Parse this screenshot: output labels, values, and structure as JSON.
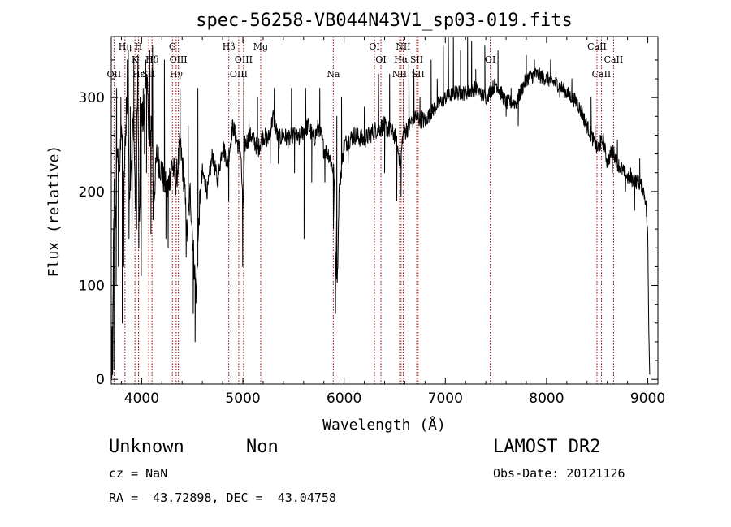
{
  "chart_data": {
    "type": "line",
    "title": "spec-56258-VB044N43V1_sp03-019.fits",
    "xlabel": "Wavelength (Å)",
    "ylabel": "Flux (relative)",
    "xlim": [
      3700,
      9100
    ],
    "ylim": [
      -5,
      365
    ],
    "xticks": [
      4000,
      5000,
      6000,
      7000,
      8000,
      9000
    ],
    "yticks": [
      0,
      100,
      200,
      300
    ],
    "grid": false,
    "line_color": "#000000",
    "marker_color": "#a00000",
    "anchors": [
      [
        3702,
        60
      ],
      [
        3712,
        30
      ],
      [
        3722,
        150
      ],
      [
        3732,
        220
      ],
      [
        3745,
        170
      ],
      [
        3760,
        250
      ],
      [
        3780,
        210
      ],
      [
        3800,
        280
      ],
      [
        3820,
        190
      ],
      [
        3840,
        260
      ],
      [
        3860,
        300
      ],
      [
        3880,
        200
      ],
      [
        3900,
        240
      ],
      [
        3920,
        280
      ],
      [
        3940,
        180
      ],
      [
        3960,
        320
      ],
      [
        3980,
        150
      ],
      [
        4000,
        290
      ],
      [
        4020,
        270
      ],
      [
        4040,
        330
      ],
      [
        4060,
        300
      ],
      [
        4080,
        240
      ],
      [
        4100,
        280
      ],
      [
        4120,
        190
      ],
      [
        4150,
        240
      ],
      [
        4200,
        220
      ],
      [
        4250,
        200
      ],
      [
        4300,
        230
      ],
      [
        4340,
        210
      ],
      [
        4380,
        250
      ],
      [
        4420,
        210
      ],
      [
        4450,
        150
      ],
      [
        4480,
        200
      ],
      [
        4520,
        120
      ],
      [
        4540,
        90
      ],
      [
        4570,
        180
      ],
      [
        4600,
        220
      ],
      [
        4650,
        200
      ],
      [
        4700,
        240
      ],
      [
        4750,
        210
      ],
      [
        4800,
        250
      ],
      [
        4850,
        230
      ],
      [
        4900,
        270
      ],
      [
        4950,
        250
      ],
      [
        4980,
        240
      ],
      [
        5000,
        180
      ],
      [
        5020,
        250
      ],
      [
        5080,
        260
      ],
      [
        5150,
        245
      ],
      [
        5200,
        260
      ],
      [
        5250,
        255
      ],
      [
        5300,
        280
      ],
      [
        5350,
        255
      ],
      [
        5400,
        260
      ],
      [
        5450,
        255
      ],
      [
        5500,
        260
      ],
      [
        5550,
        255
      ],
      [
        5600,
        265
      ],
      [
        5650,
        270
      ],
      [
        5700,
        255
      ],
      [
        5750,
        270
      ],
      [
        5800,
        245
      ],
      [
        5850,
        240
      ],
      [
        5900,
        220
      ],
      [
        5920,
        120
      ],
      [
        5935,
        110
      ],
      [
        5950,
        200
      ],
      [
        6000,
        250
      ],
      [
        6100,
        260
      ],
      [
        6200,
        255
      ],
      [
        6300,
        265
      ],
      [
        6400,
        270
      ],
      [
        6500,
        260
      ],
      [
        6560,
        230
      ],
      [
        6580,
        260
      ],
      [
        6700,
        280
      ],
      [
        6800,
        275
      ],
      [
        6900,
        290
      ],
      [
        7000,
        300
      ],
      [
        7100,
        305
      ],
      [
        7200,
        305
      ],
      [
        7300,
        310
      ],
      [
        7400,
        300
      ],
      [
        7500,
        315
      ],
      [
        7600,
        295
      ],
      [
        7700,
        295
      ],
      [
        7800,
        320
      ],
      [
        7900,
        325
      ],
      [
        8000,
        320
      ],
      [
        8100,
        315
      ],
      [
        8200,
        305
      ],
      [
        8300,
        295
      ],
      [
        8400,
        270
      ],
      [
        8500,
        245
      ],
      [
        8560,
        255
      ],
      [
        8600,
        230
      ],
      [
        8650,
        245
      ],
      [
        8700,
        230
      ],
      [
        8800,
        215
      ],
      [
        8900,
        210
      ],
      [
        8950,
        205
      ],
      [
        8980,
        190
      ],
      [
        9000,
        150
      ],
      [
        9010,
        50
      ],
      [
        9020,
        0
      ]
    ],
    "spikes": [
      [
        3700,
        35
      ],
      [
        3706,
        2
      ],
      [
        3713,
        5
      ],
      [
        3718,
        80
      ],
      [
        3726,
        10
      ],
      [
        3736,
        330
      ],
      [
        3748,
        100
      ],
      [
        3753,
        310
      ],
      [
        3770,
        120
      ],
      [
        3795,
        300
      ],
      [
        3808,
        60
      ],
      [
        3823,
        120
      ],
      [
        3848,
        300
      ],
      [
        3858,
        340
      ],
      [
        3868,
        350
      ],
      [
        3875,
        150
      ],
      [
        3888,
        290
      ],
      [
        3905,
        130
      ],
      [
        3922,
        340
      ],
      [
        3945,
        330
      ],
      [
        3950,
        160
      ],
      [
        3963,
        345
      ],
      [
        3972,
        140
      ],
      [
        3985,
        300
      ],
      [
        3996,
        110
      ],
      [
        4015,
        310
      ],
      [
        4027,
        240
      ],
      [
        4040,
        340
      ],
      [
        4048,
        220
      ],
      [
        4080,
        350
      ],
      [
        4092,
        155
      ],
      [
        4102,
        330
      ],
      [
        4108,
        355
      ],
      [
        4113,
        170
      ],
      [
        4225,
        340
      ],
      [
        4240,
        150
      ],
      [
        4262,
        140
      ],
      [
        4380,
        310
      ],
      [
        4440,
        130
      ],
      [
        4460,
        270
      ],
      [
        4510,
        70
      ],
      [
        4528,
        40
      ],
      [
        4555,
        310
      ],
      [
        4860,
        190
      ],
      [
        4998,
        120
      ],
      [
        5010,
        330
      ],
      [
        5060,
        280
      ],
      [
        5145,
        300
      ],
      [
        5270,
        230
      ],
      [
        5310,
        310
      ],
      [
        5350,
        230
      ],
      [
        5480,
        310
      ],
      [
        5510,
        220
      ],
      [
        5605,
        150
      ],
      [
        5620,
        310
      ],
      [
        5680,
        210
      ],
      [
        5760,
        310
      ],
      [
        5810,
        210
      ],
      [
        5895,
        160
      ],
      [
        5915,
        70
      ],
      [
        5928,
        280
      ],
      [
        5975,
        300
      ],
      [
        6040,
        230
      ],
      [
        6200,
        290
      ],
      [
        6340,
        325
      ],
      [
        6400,
        220
      ],
      [
        6450,
        325
      ],
      [
        6520,
        190
      ],
      [
        6563,
        195
      ],
      [
        6590,
        320
      ],
      [
        6640,
        340
      ],
      [
        6690,
        330
      ],
      [
        6750,
        300
      ],
      [
        6860,
        340
      ],
      [
        6920,
        320
      ],
      [
        6980,
        355
      ],
      [
        7030,
        365
      ],
      [
        7080,
        370
      ],
      [
        7150,
        350
      ],
      [
        7220,
        370
      ],
      [
        7260,
        360
      ],
      [
        7300,
        330
      ],
      [
        7390,
        355
      ],
      [
        7450,
        365
      ],
      [
        7520,
        350
      ],
      [
        7600,
        280
      ],
      [
        7650,
        310
      ],
      [
        7720,
        270
      ],
      [
        7800,
        345
      ],
      [
        7880,
        340
      ],
      [
        7960,
        320
      ],
      [
        8040,
        340
      ],
      [
        8130,
        300
      ],
      [
        8250,
        320
      ],
      [
        8350,
        290
      ],
      [
        8440,
        300
      ],
      [
        8480,
        270
      ],
      [
        8530,
        260
      ],
      [
        8650,
        220
      ],
      [
        8700,
        255
      ],
      [
        8780,
        200
      ],
      [
        8830,
        225
      ],
      [
        8870,
        180
      ],
      [
        8920,
        235
      ],
      [
        8960,
        200
      ],
      [
        8990,
        170
      ]
    ],
    "line_markers": [
      {
        "label": "OII",
        "wl": 3727,
        "row": 3
      },
      {
        "label": "Hη",
        "wl": 3835,
        "row": 1
      },
      {
        "label": "H",
        "wl": 3969,
        "row": 1
      },
      {
        "label": "K",
        "wl": 3934,
        "row": 2
      },
      {
        "label": "Hε",
        "wl": 3970,
        "row": 3
      },
      {
        "label": "Hδ",
        "wl": 4102,
        "row": 2
      },
      {
        "label": "SII",
        "wl": 4070,
        "row": 3
      },
      {
        "label": "G",
        "wl": 4304,
        "row": 1
      },
      {
        "label": "OIII",
        "wl": 4363,
        "row": 2
      },
      {
        "label": "Hγ",
        "wl": 4341,
        "row": 3
      },
      {
        "label": "Hβ",
        "wl": 4861,
        "row": 1
      },
      {
        "label": "OIII",
        "wl": 5007,
        "row": 2
      },
      {
        "label": "OIII",
        "wl": 4959,
        "row": 3
      },
      {
        "label": "Mg",
        "wl": 5176,
        "row": 1
      },
      {
        "label": "Na",
        "wl": 5893,
        "row": 3
      },
      {
        "label": "OI",
        "wl": 6300,
        "row": 1
      },
      {
        "label": "OI",
        "wl": 6364,
        "row": 2
      },
      {
        "label": "NII",
        "wl": 6584,
        "row": 1
      },
      {
        "label": "Hα",
        "wl": 6563,
        "row": 2
      },
      {
        "label": "SII",
        "wl": 6717,
        "row": 2
      },
      {
        "label": "NII",
        "wl": 6548,
        "row": 3
      },
      {
        "label": "SII",
        "wl": 6731,
        "row": 3
      },
      {
        "label": "OI",
        "wl": 7444,
        "row": 2
      },
      {
        "label": "CaII",
        "wl": 8498,
        "row": 1
      },
      {
        "label": "CaII",
        "wl": 8662,
        "row": 2
      },
      {
        "label": "CaII",
        "wl": 8542,
        "row": 3
      }
    ]
  },
  "info": {
    "classification": "Unknown",
    "subclass": "Non",
    "survey": "LAMOST DR2",
    "cz": "cz = NaN",
    "obs_date": "Obs-Date: 20121126",
    "coords": "RA =  43.72898, DEC =  43.04758"
  }
}
